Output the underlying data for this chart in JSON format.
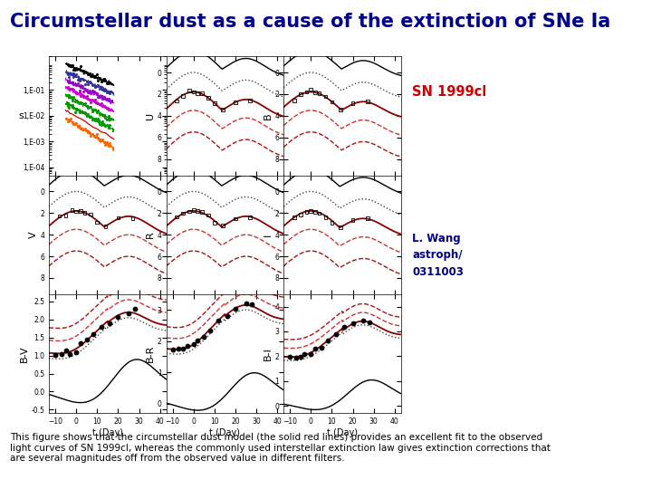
{
  "title": "Circumstellar dust as a cause of the extinction of SNe Ia",
  "title_color": "#00008B",
  "title_fontsize": 15,
  "sn_label": "SN 1999cl",
  "sn_label_color": "#CC0000",
  "author_line1": "L. Wang",
  "author_line2": "astroph/",
  "author_line3": "0311003",
  "author_color": "#00008B",
  "caption": "This figure shows that the circumstellar dust model (the solid red lines) provides an excellent fit to the observed\nlight curves of SN 1999cl, whereas the commonly used interstellar extinction law gives extinction corrections that\nare several magnitudes off from the observed value in different filters.",
  "caption_fontsize": 7.5,
  "bg_color": "#FFFFFF",
  "x_ticks": [
    -10,
    0,
    10,
    20,
    30,
    40
  ],
  "c_black": "#000000",
  "c_red_solid": "#8B0000",
  "c_red_dash1": "#CC3333",
  "c_red_dash2": "#AA1111",
  "c_dotted": "#444444"
}
